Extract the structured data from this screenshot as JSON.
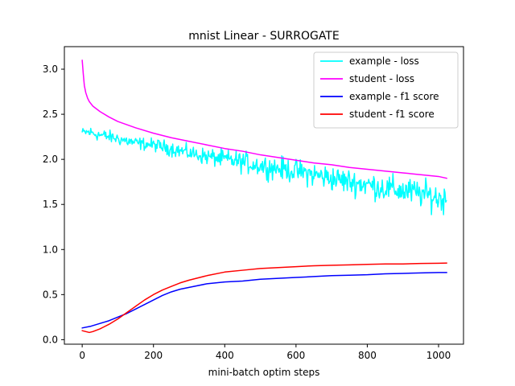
{
  "chart_data": {
    "type": "line",
    "title": "mnist Linear - SURROGATE",
    "xlabel": "mini-batch optim steps",
    "ylabel": "",
    "xlim": [
      -50,
      1070
    ],
    "ylim": [
      -0.05,
      3.25
    ],
    "xticks": [
      0,
      200,
      400,
      600,
      800,
      1000
    ],
    "yticks": [
      0.0,
      0.5,
      1.0,
      1.5,
      2.0,
      2.5,
      3.0
    ],
    "xtick_labels": [
      "0",
      "200",
      "400",
      "600",
      "800",
      "1000"
    ],
    "ytick_labels": [
      "0.0",
      "0.5",
      "1.0",
      "1.5",
      "2.0",
      "2.5",
      "3.0"
    ],
    "grid": false,
    "legend_position": "top-right",
    "series": [
      {
        "name": "example - loss",
        "color": "#00ffff",
        "noisy": true,
        "x": [
          0,
          20,
          50,
          100,
          150,
          200,
          250,
          300,
          350,
          400,
          450,
          500,
          550,
          600,
          650,
          700,
          750,
          800,
          850,
          900,
          950,
          1000,
          1023
        ],
        "y": [
          2.3,
          2.3,
          2.27,
          2.23,
          2.18,
          2.16,
          2.12,
          2.07,
          2.03,
          2.0,
          1.97,
          1.93,
          1.9,
          1.87,
          1.83,
          1.79,
          1.75,
          1.72,
          1.68,
          1.65,
          1.62,
          1.57,
          1.55
        ],
        "noise": [
          0.04,
          0.06,
          0.06,
          0.06,
          0.06,
          0.06,
          0.07,
          0.07,
          0.08,
          0.09,
          0.1,
          0.1,
          0.11,
          0.11,
          0.12,
          0.12,
          0.12,
          0.12,
          0.13,
          0.13,
          0.13,
          0.14,
          0.14
        ]
      },
      {
        "name": "student - loss",
        "color": "#ff00ff",
        "noisy": false,
        "x": [
          0,
          3,
          6,
          10,
          15,
          20,
          30,
          50,
          75,
          100,
          150,
          200,
          250,
          300,
          350,
          400,
          450,
          500,
          550,
          600,
          650,
          700,
          750,
          800,
          850,
          900,
          950,
          1000,
          1023
        ],
        "y": [
          3.1,
          2.95,
          2.82,
          2.74,
          2.68,
          2.64,
          2.59,
          2.53,
          2.47,
          2.42,
          2.35,
          2.29,
          2.24,
          2.2,
          2.16,
          2.12,
          2.09,
          2.05,
          2.02,
          1.99,
          1.96,
          1.94,
          1.91,
          1.89,
          1.87,
          1.85,
          1.83,
          1.81,
          1.79
        ]
      },
      {
        "name": "example - f1 score",
        "color": "#0000ff",
        "noisy": false,
        "x": [
          0,
          25,
          50,
          75,
          100,
          125,
          150,
          175,
          200,
          225,
          250,
          275,
          300,
          350,
          400,
          450,
          500,
          550,
          600,
          650,
          700,
          750,
          800,
          850,
          900,
          950,
          1000,
          1023
        ],
        "y": [
          0.13,
          0.15,
          0.18,
          0.21,
          0.25,
          0.29,
          0.34,
          0.39,
          0.44,
          0.49,
          0.53,
          0.56,
          0.58,
          0.62,
          0.64,
          0.65,
          0.67,
          0.68,
          0.69,
          0.7,
          0.71,
          0.715,
          0.72,
          0.73,
          0.735,
          0.74,
          0.745,
          0.745
        ]
      },
      {
        "name": "student - f1 score",
        "color": "#ff0000",
        "noisy": false,
        "x": [
          0,
          10,
          20,
          30,
          50,
          75,
          100,
          125,
          150,
          175,
          200,
          225,
          250,
          275,
          300,
          350,
          400,
          450,
          500,
          550,
          600,
          650,
          700,
          750,
          800,
          850,
          900,
          950,
          1000,
          1023
        ],
        "y": [
          0.1,
          0.09,
          0.08,
          0.09,
          0.12,
          0.17,
          0.23,
          0.3,
          0.37,
          0.44,
          0.5,
          0.55,
          0.59,
          0.63,
          0.66,
          0.71,
          0.75,
          0.77,
          0.79,
          0.8,
          0.81,
          0.82,
          0.825,
          0.83,
          0.835,
          0.84,
          0.84,
          0.845,
          0.848,
          0.85
        ]
      }
    ]
  }
}
